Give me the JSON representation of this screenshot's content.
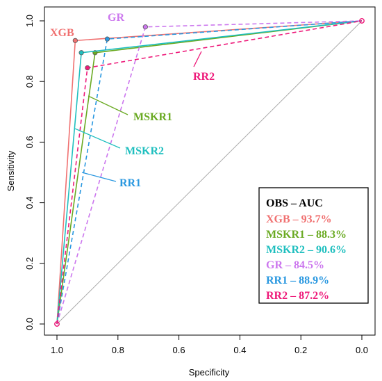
{
  "chart_data": {
    "type": "line",
    "xlabel": "Specificity",
    "ylabel": "Sensitivity",
    "xlim": [
      1.0,
      0.0
    ],
    "ylim": [
      0.0,
      1.0
    ],
    "x_reversed": true,
    "x_ticks": [
      "1.0",
      "0.8",
      "0.6",
      "0.4",
      "0.2",
      "0.0"
    ],
    "y_ticks": [
      "0.0",
      "0.2",
      "0.4",
      "0.6",
      "0.8",
      "1.0"
    ],
    "grid": false,
    "diagonal_reference": true,
    "series": [
      {
        "name": "XGB",
        "color": "#f07070",
        "dash": false,
        "points": [
          [
            1.0,
            0.0
          ],
          [
            0.94,
            0.935
          ],
          [
            0.0,
            1.0
          ]
        ]
      },
      {
        "name": "MSKR1",
        "color": "#6aaa22",
        "dash": false,
        "points": [
          [
            1.0,
            0.0
          ],
          [
            0.875,
            0.895
          ],
          [
            0.0,
            1.0
          ]
        ]
      },
      {
        "name": "MSKR2",
        "color": "#1fbfbf",
        "dash": false,
        "points": [
          [
            1.0,
            0.0
          ],
          [
            0.92,
            0.895
          ],
          [
            0.0,
            1.0
          ]
        ]
      },
      {
        "name": "GR",
        "color": "#cc77ee",
        "dash": true,
        "points": [
          [
            1.0,
            0.0
          ],
          [
            0.71,
            0.98
          ],
          [
            0.0,
            1.0
          ]
        ]
      },
      {
        "name": "RR1",
        "color": "#2a98e0",
        "dash": true,
        "points": [
          [
            1.0,
            0.0
          ],
          [
            0.835,
            0.94
          ],
          [
            0.0,
            1.0
          ]
        ]
      },
      {
        "name": "RR2",
        "color": "#ee1a7a",
        "dash": true,
        "points": [
          [
            1.0,
            0.0
          ],
          [
            0.9,
            0.845
          ],
          [
            0.0,
            1.0
          ]
        ]
      }
    ],
    "annotations": [
      {
        "text": "XGB",
        "color": "#f07070"
      },
      {
        "text": "GR",
        "color": "#cc77ee"
      },
      {
        "text": "RR2",
        "color": "#ee1a7a"
      },
      {
        "text": "MSKR1",
        "color": "#6aaa22"
      },
      {
        "text": "MSKR2",
        "color": "#1fbfbf"
      },
      {
        "text": "RR1",
        "color": "#2a98e0"
      }
    ],
    "legend": {
      "placement": "bottom-right",
      "title": "OBS – AUC",
      "entries": [
        {
          "text": "XGB – 93.7%",
          "color": "#f07070"
        },
        {
          "text": "MSKR1 – 88.3%",
          "color": "#6aaa22"
        },
        {
          "text": "MSKR2 – 90.6%",
          "color": "#1fbfbf"
        },
        {
          "text": "GR  – 84.5%",
          "color": "#cc77ee"
        },
        {
          "text": "RR1 – 88.9%",
          "color": "#2a98e0"
        },
        {
          "text": "RR2 – 87.2%",
          "color": "#ee1a7a"
        }
      ]
    }
  }
}
